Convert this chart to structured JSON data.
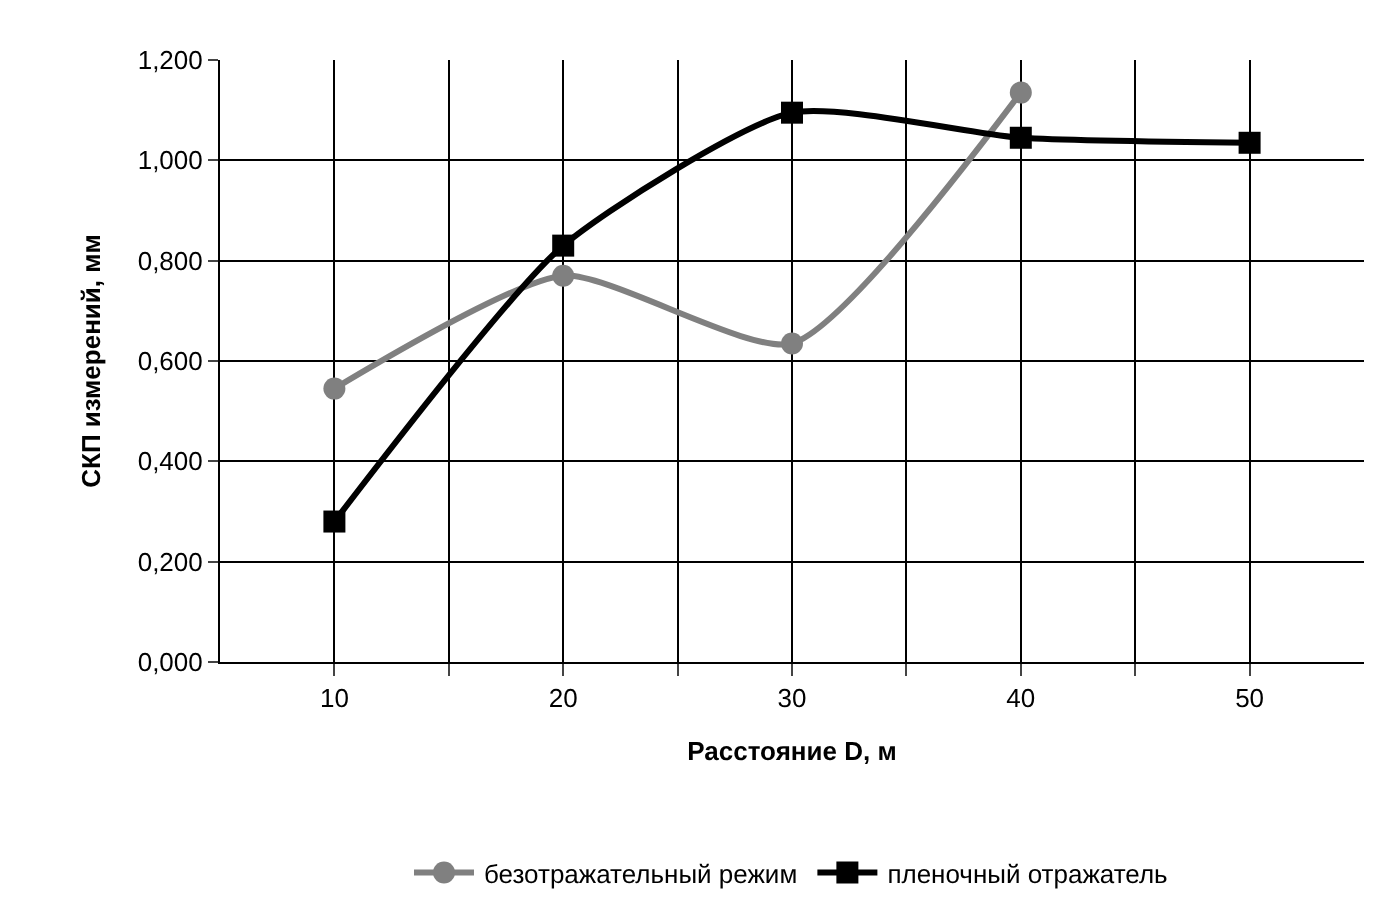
{
  "chart_data": {
    "type": "line",
    "xlabel": "Расстояние D, м",
    "ylabel": "СКП измерений, мм",
    "categories": [
      "10",
      "20",
      "30",
      "40",
      "50"
    ],
    "series": [
      {
        "name": "безотражательный режим",
        "color": "#808080",
        "marker": "circle",
        "values": [
          0.545,
          0.77,
          0.635,
          1.135,
          null
        ]
      },
      {
        "name": "пленочный отражатель",
        "color": "#000000",
        "marker": "square",
        "values": [
          0.28,
          0.83,
          1.095,
          1.045,
          1.035
        ]
      }
    ],
    "ylim": [
      0,
      1.2
    ],
    "yticks": [
      {
        "value": 0,
        "label": "0,000"
      },
      {
        "value": 0.2,
        "label": "0,200"
      },
      {
        "value": 0.4,
        "label": "0,400"
      },
      {
        "value": 0.6,
        "label": "0,600"
      },
      {
        "value": 0.8,
        "label": "0,800"
      },
      {
        "value": 1.0,
        "label": "1,000"
      },
      {
        "value": 1.2,
        "label": "1,200"
      }
    ],
    "grid": true,
    "legend": "bottom",
    "line_style": "solid"
  }
}
